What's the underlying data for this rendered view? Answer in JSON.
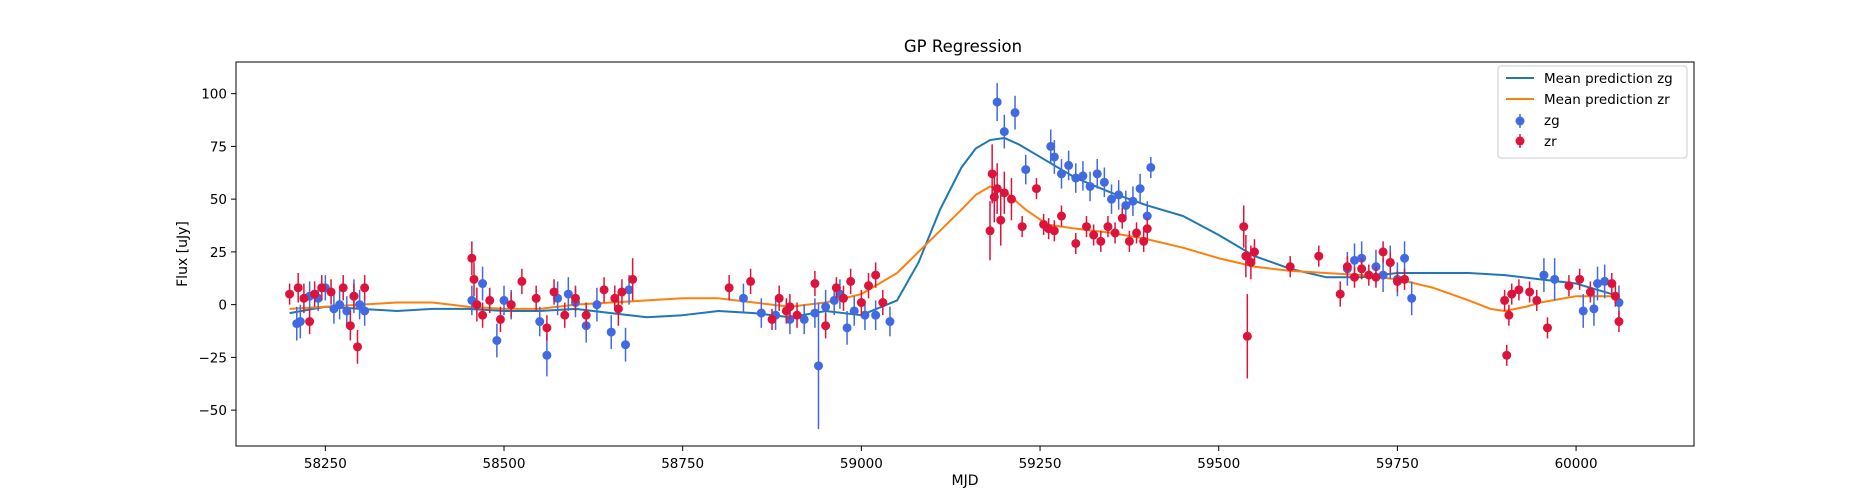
{
  "chart_data": {
    "type": "scatter",
    "title": "GP Regression",
    "xlabel": "MJD",
    "ylabel": "Flux [uJy]",
    "xlim": [
      58125,
      60165
    ],
    "ylim": [
      -67,
      115
    ],
    "xticks": [
      58250,
      58500,
      58750,
      59000,
      59250,
      59500,
      59750,
      60000
    ],
    "yticks": [
      -50,
      -25,
      0,
      25,
      50,
      75,
      100
    ],
    "grid": false,
    "legend_position": "top-right",
    "colors": {
      "mean_zg": "#1f77b4",
      "mean_zr": "#ff7f0e",
      "zg": "#4169e1",
      "zr": "#dc143c"
    },
    "series": [
      {
        "name": "Mean prediction zg",
        "kind": "line",
        "color": "#1f77b4",
        "x": [
          58200,
          58250,
          58300,
          58350,
          58400,
          58450,
          58500,
          58550,
          58600,
          58650,
          58700,
          58750,
          58800,
          58850,
          58900,
          58950,
          59000,
          59050,
          59080,
          59110,
          59140,
          59160,
          59180,
          59200,
          59220,
          59250,
          59280,
          59300,
          59350,
          59400,
          59450,
          59500,
          59550,
          59600,
          59650,
          59700,
          59750,
          59800,
          59850,
          59900,
          59950,
          60000,
          60050,
          60060
        ],
        "y": [
          -4,
          -1,
          -2,
          -3,
          -2,
          -2,
          -3,
          -3,
          -2,
          -4,
          -6,
          -5,
          -3,
          -4,
          -6,
          -3,
          -5,
          2,
          20,
          45,
          65,
          74,
          78,
          79,
          76,
          70,
          64,
          60,
          53,
          47,
          42,
          33,
          23,
          17,
          13,
          13,
          15,
          15,
          15,
          14,
          12,
          10,
          5,
          3
        ]
      },
      {
        "name": "Mean prediction zr",
        "kind": "line",
        "color": "#ff7f0e",
        "x": [
          58200,
          58250,
          58300,
          58350,
          58400,
          58450,
          58500,
          58550,
          58600,
          58650,
          58700,
          58750,
          58800,
          58850,
          58900,
          58950,
          59000,
          59050,
          59080,
          59110,
          59140,
          59160,
          59180,
          59200,
          59230,
          59260,
          59300,
          59350,
          59400,
          59450,
          59500,
          59550,
          59600,
          59650,
          59700,
          59750,
          59800,
          59850,
          59880,
          59900,
          59930,
          59950,
          60000,
          60050,
          60060
        ],
        "y": [
          -2,
          -1,
          0,
          1,
          1,
          -1,
          -2,
          -2,
          0,
          1,
          2,
          3,
          3,
          1,
          -1,
          1,
          5,
          15,
          25,
          35,
          45,
          52,
          56,
          54,
          45,
          38,
          36,
          34,
          31,
          27,
          22,
          18,
          16,
          15,
          14,
          12,
          8,
          2,
          -2,
          -3,
          -1,
          1,
          4,
          4,
          4
        ]
      },
      {
        "name": "zg",
        "kind": "errorbar",
        "color": "#4169e1",
        "x": [
          58210,
          58215,
          58228,
          58240,
          58250,
          58262,
          58270,
          58280,
          58290,
          58298,
          58305,
          58455,
          58470,
          58490,
          58500,
          58510,
          58550,
          58560,
          58575,
          58590,
          58600,
          58615,
          58630,
          58650,
          58670,
          58675,
          58835,
          58860,
          58880,
          58900,
          58920,
          58935,
          58940,
          58950,
          58962,
          58970,
          58980,
          58990,
          59005,
          59020,
          59040,
          59190,
          59200,
          59215,
          59230,
          59265,
          59270,
          59280,
          59290,
          59300,
          59310,
          59320,
          59330,
          59340,
          59350,
          59360,
          59370,
          59380,
          59390,
          59400,
          59405,
          59680,
          59690,
          59700,
          59720,
          59730,
          59740,
          59750,
          59760,
          59770,
          59955,
          59970,
          60010,
          60025,
          60030,
          60040,
          60060
        ],
        "y": [
          -9,
          -8,
          4,
          3,
          8,
          -2,
          0,
          -3,
          4,
          0,
          -3,
          2,
          10,
          -17,
          2,
          0,
          -8,
          -24,
          3,
          5,
          1,
          -10,
          0,
          -13,
          -19,
          7,
          3,
          -4,
          -5,
          -7,
          -7,
          -4,
          -29,
          -1,
          2,
          5,
          -11,
          -3,
          -5,
          -5,
          -8,
          96,
          82,
          91,
          64,
          75,
          70,
          62,
          66,
          60,
          61,
          56,
          62,
          58,
          50,
          52,
          47,
          49,
          55,
          42,
          65,
          17,
          21,
          22,
          18,
          14,
          20,
          12,
          22,
          3,
          14,
          12,
          -3,
          -2,
          10,
          11,
          1
        ],
        "err": [
          8,
          8,
          7,
          6,
          6,
          7,
          7,
          7,
          8,
          7,
          7,
          7,
          8,
          8,
          7,
          7,
          7,
          10,
          8,
          8,
          7,
          8,
          8,
          8,
          8,
          7,
          7,
          7,
          7,
          7,
          7,
          7,
          30,
          8,
          7,
          7,
          8,
          7,
          7,
          7,
          7,
          9,
          8,
          8,
          7,
          8,
          8,
          7,
          7,
          7,
          7,
          7,
          7,
          7,
          7,
          7,
          7,
          7,
          7,
          7,
          5,
          8,
          8,
          8,
          8,
          8,
          8,
          8,
          8,
          8,
          8,
          10,
          8,
          8,
          8,
          8,
          8
        ]
      },
      {
        "name": "zr",
        "kind": "errorbar",
        "color": "#dc143c",
        "x": [
          58200,
          58212,
          58220,
          58228,
          58235,
          58245,
          58258,
          58275,
          58285,
          58290,
          58295,
          58305,
          58455,
          58458,
          58462,
          58470,
          58480,
          58495,
          58510,
          58525,
          58545,
          58560,
          58570,
          58585,
          58600,
          58615,
          58640,
          58655,
          58660,
          58665,
          58680,
          58815,
          58845,
          58875,
          58885,
          58895,
          58900,
          58910,
          58935,
          58950,
          58965,
          58975,
          58985,
          59000,
          59010,
          59020,
          59030,
          59180,
          59183,
          59186,
          59190,
          59195,
          59200,
          59210,
          59225,
          59245,
          59255,
          59262,
          59270,
          59280,
          59300,
          59315,
          59325,
          59335,
          59345,
          59355,
          59365,
          59375,
          59385,
          59395,
          59400,
          59535,
          59538,
          59540,
          59545,
          59550,
          59600,
          59640,
          59670,
          59680,
          59690,
          59700,
          59710,
          59720,
          59730,
          59740,
          59750,
          59760,
          59900,
          59903,
          59906,
          59910,
          59920,
          59935,
          59945,
          59960,
          59990,
          60005,
          60020,
          60050,
          60055,
          60060
        ],
        "y": [
          5,
          8,
          3,
          -8,
          5,
          8,
          6,
          8,
          -10,
          4,
          -20,
          8,
          22,
          12,
          0,
          -5,
          2,
          -7,
          0,
          11,
          3,
          -11,
          6,
          -5,
          3,
          -5,
          7,
          3,
          -2,
          6,
          12,
          8,
          11,
          -7,
          3,
          -3,
          -1,
          -5,
          10,
          -10,
          8,
          3,
          11,
          1,
          9,
          14,
          1,
          35,
          62,
          51,
          55,
          40,
          53,
          50,
          37,
          55,
          38,
          36,
          35,
          42,
          29,
          37,
          33,
          30,
          37,
          34,
          41,
          30,
          34,
          30,
          36,
          37,
          23,
          -15,
          20,
          25,
          18,
          23,
          5,
          18,
          13,
          17,
          14,
          13,
          25,
          20,
          11,
          12,
          2,
          -24,
          -5,
          5,
          7,
          6,
          2,
          -11,
          9,
          12,
          6,
          10,
          4,
          -8
        ],
        "err": [
          5,
          7,
          7,
          6,
          6,
          6,
          6,
          6,
          7,
          6,
          8,
          6,
          8,
          8,
          8,
          6,
          6,
          6,
          6,
          6,
          6,
          6,
          6,
          6,
          6,
          6,
          6,
          6,
          8,
          6,
          10,
          6,
          6,
          5,
          6,
          6,
          6,
          6,
          6,
          6,
          5,
          6,
          6,
          6,
          6,
          6,
          6,
          14,
          14,
          12,
          12,
          12,
          10,
          10,
          5,
          5,
          5,
          5,
          5,
          5,
          5,
          5,
          5,
          5,
          5,
          5,
          5,
          5,
          5,
          5,
          5,
          10,
          10,
          20,
          8,
          6,
          5,
          5,
          6,
          5,
          5,
          5,
          5,
          5,
          5,
          5,
          5,
          5,
          5,
          5,
          5,
          5,
          5,
          5,
          5,
          5,
          5,
          5,
          5,
          5,
          5,
          5
        ]
      }
    ]
  }
}
